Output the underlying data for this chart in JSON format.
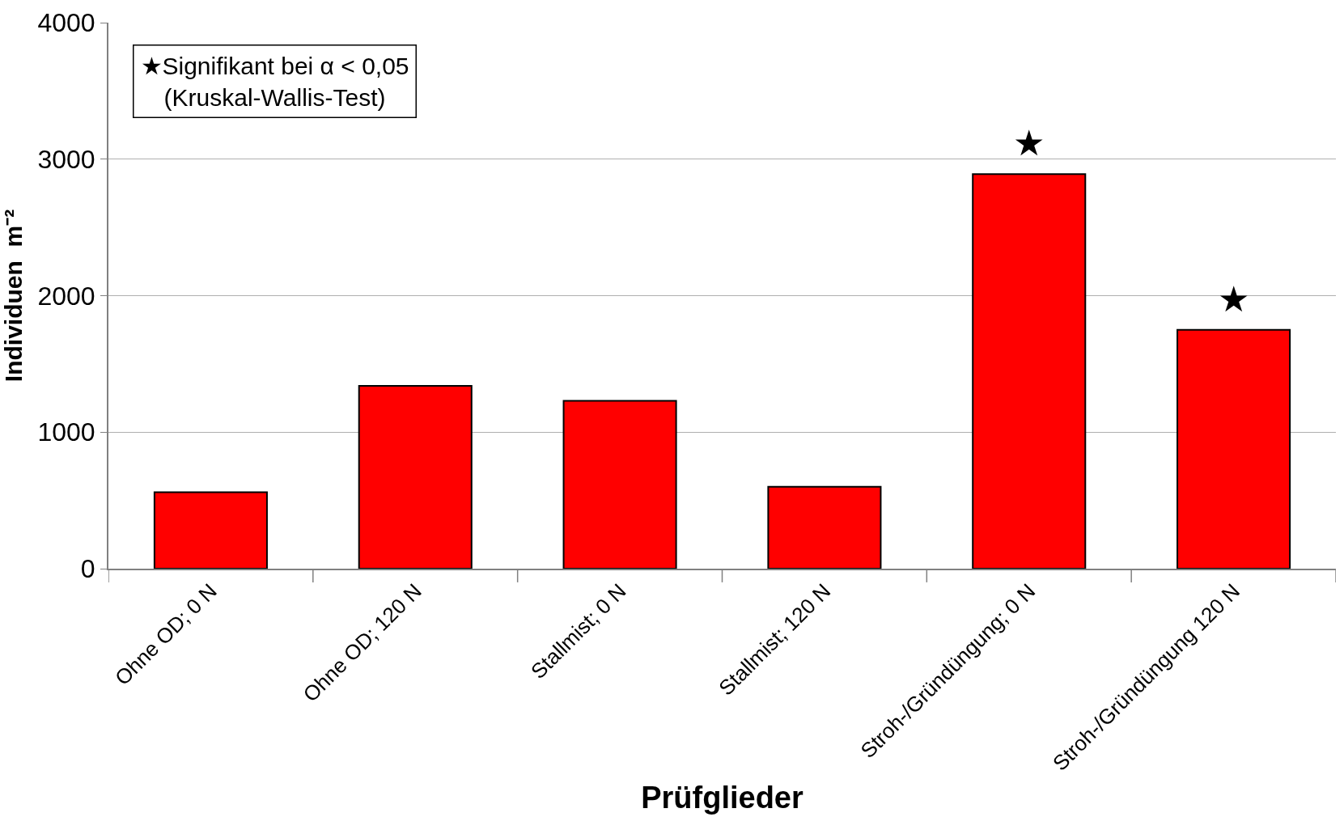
{
  "chart_data": {
    "type": "bar",
    "xlabel": "Prüfglieder",
    "ylabel": "Individuen  m⁻²",
    "categories": [
      "Ohne OD; 0 N",
      "Ohne OD; 120 N",
      "Stallmist; 0 N",
      "Stallmist; 120 N",
      "Stroh-/Gründüngung; 0 N",
      "Stroh-/Gründüngung 120 N"
    ],
    "values": [
      560,
      1340,
      1230,
      600,
      2890,
      1750
    ],
    "color": "#ff0000",
    "ylim": [
      0,
      4000
    ],
    "yticks": [
      0,
      1000,
      2000,
      3000,
      4000
    ],
    "grid": "y",
    "legend": false,
    "annotations": [
      {
        "text": "★Signifikant bei α < 0,05\n(Kruskal-Wallis-Test)"
      },
      {
        "text": "★",
        "x": "Stroh-/Gründüngung; 0 N",
        "y": 2890
      },
      {
        "text": "★",
        "x": "Stroh-/Gründüngung 120 N",
        "y": 1750
      }
    ]
  }
}
